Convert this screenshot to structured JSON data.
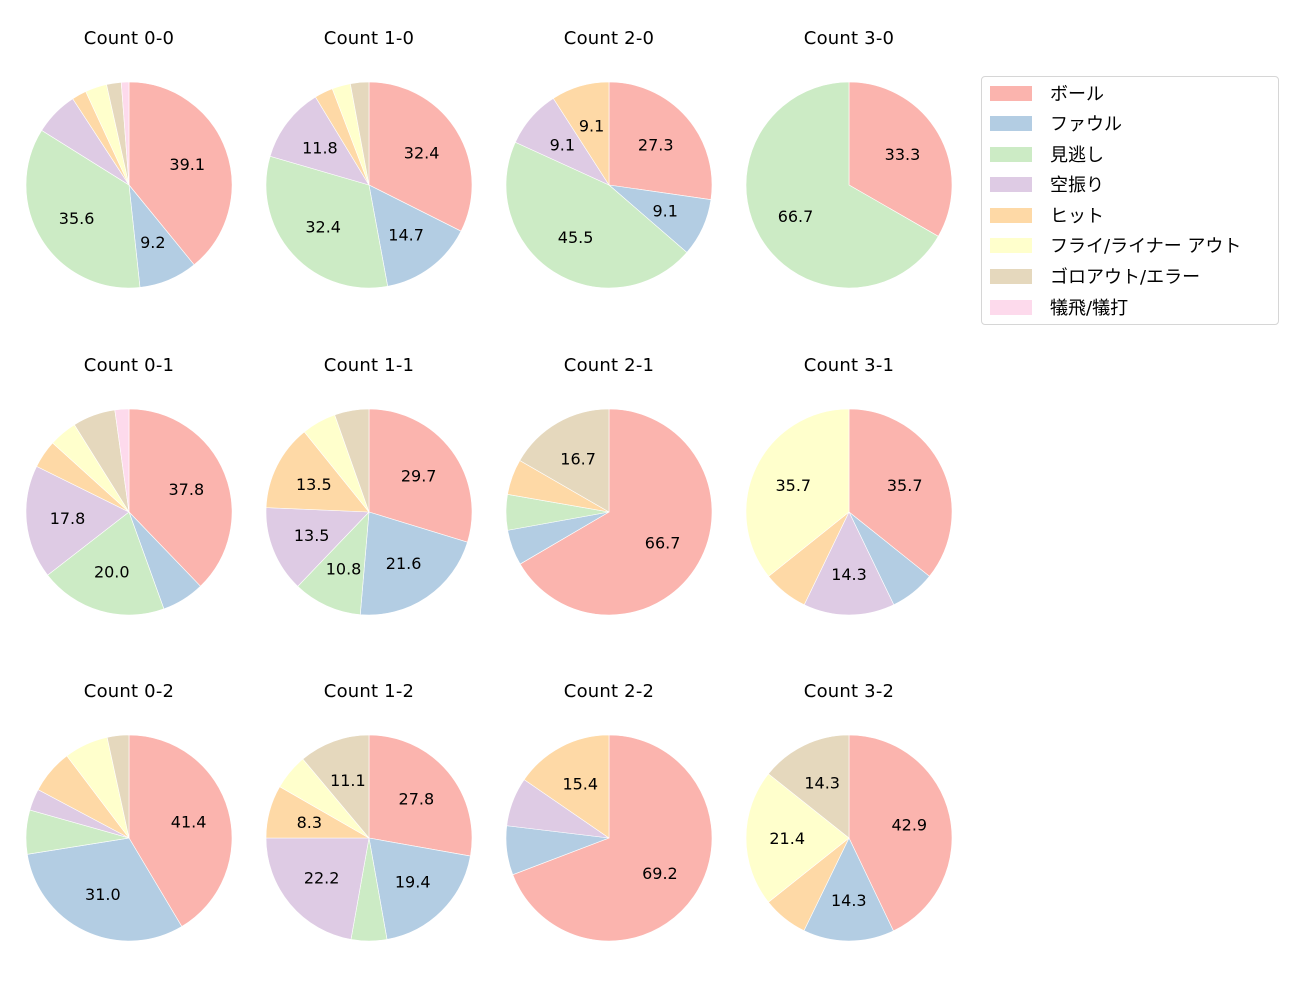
{
  "legend": {
    "items": [
      {
        "label": "ボール",
        "color": "#fbb4ae"
      },
      {
        "label": "ファウル",
        "color": "#b3cde3"
      },
      {
        "label": "見逃し",
        "color": "#ccebc5"
      },
      {
        "label": "空振り",
        "color": "#decbe4"
      },
      {
        "label": "ヒット",
        "color": "#fed9a6"
      },
      {
        "label": "フライ/ライナー アウト",
        "color": "#ffffcc"
      },
      {
        "label": "ゴロアウト/エラー",
        "color": "#e5d8bd"
      },
      {
        "label": "犠飛/犠打",
        "color": "#fddaec"
      }
    ]
  },
  "chart_data": [
    {
      "type": "pie",
      "title": "Count 0-0",
      "categories": [
        "ボール",
        "ファウル",
        "見逃し",
        "空振り",
        "ヒット",
        "フライ/ライナー アウト",
        "ゴロアウト/エラー",
        "犠飛/犠打"
      ],
      "values": [
        39.1,
        9.2,
        35.6,
        6.9,
        2.3,
        3.4,
        2.3,
        1.2
      ],
      "labels": [
        "39.1",
        "9.2",
        "35.6",
        "",
        "",
        "",
        "",
        ""
      ]
    },
    {
      "type": "pie",
      "title": "Count 1-0",
      "categories": [
        "ボール",
        "ファウル",
        "見逃し",
        "空振り",
        "ヒット",
        "フライ/ライナー アウト",
        "ゴロアウト/エラー",
        "犠飛/犠打"
      ],
      "values": [
        32.4,
        14.7,
        32.4,
        11.8,
        2.9,
        2.9,
        2.9,
        0
      ],
      "labels": [
        "32.4",
        "14.7",
        "32.4",
        "11.8",
        "",
        "",
        "",
        ""
      ]
    },
    {
      "type": "pie",
      "title": "Count 2-0",
      "categories": [
        "ボール",
        "ファウル",
        "見逃し",
        "空振り",
        "ヒット",
        "フライ/ライナー アウト",
        "ゴロアウト/エラー",
        "犠飛/犠打"
      ],
      "values": [
        27.3,
        9.1,
        45.5,
        9.1,
        9.1,
        0,
        0,
        0
      ],
      "labels": [
        "27.3",
        "9.1",
        "45.5",
        "9.1",
        "9.1",
        "",
        "",
        ""
      ]
    },
    {
      "type": "pie",
      "title": "Count 3-0",
      "categories": [
        "ボール",
        "ファウル",
        "見逃し",
        "空振り",
        "ヒット",
        "フライ/ライナー アウト",
        "ゴロアウト/エラー",
        "犠飛/犠打"
      ],
      "values": [
        33.3,
        0,
        66.7,
        0,
        0,
        0,
        0,
        0
      ],
      "labels": [
        "33.3",
        "",
        "66.7",
        "",
        "",
        "",
        "",
        ""
      ]
    },
    {
      "type": "pie",
      "title": "Count 0-1",
      "categories": [
        "ボール",
        "ファウル",
        "見逃し",
        "空振り",
        "ヒット",
        "フライ/ライナー アウト",
        "ゴロアウト/エラー",
        "犠飛/犠打"
      ],
      "values": [
        37.8,
        6.7,
        20.0,
        17.8,
        4.4,
        4.4,
        6.7,
        2.2
      ],
      "labels": [
        "37.8",
        "",
        "20.0",
        "17.8",
        "",
        "",
        "",
        ""
      ]
    },
    {
      "type": "pie",
      "title": "Count 1-1",
      "categories": [
        "ボール",
        "ファウル",
        "見逃し",
        "空振り",
        "ヒット",
        "フライ/ライナー アウト",
        "ゴロアウト/エラー",
        "犠飛/犠打"
      ],
      "values": [
        29.7,
        21.6,
        10.8,
        13.5,
        13.5,
        5.4,
        5.4,
        0
      ],
      "labels": [
        "29.7",
        "21.6",
        "10.8",
        "13.5",
        "13.5",
        "",
        "",
        ""
      ]
    },
    {
      "type": "pie",
      "title": "Count 2-1",
      "categories": [
        "ボール",
        "ファウル",
        "見逃し",
        "空振り",
        "ヒット",
        "フライ/ライナー アウト",
        "ゴロアウト/エラー",
        "犠飛/犠打"
      ],
      "values": [
        66.7,
        5.6,
        5.6,
        0,
        5.6,
        0,
        16.7,
        0
      ],
      "labels": [
        "66.7",
        "",
        "",
        "",
        "",
        "",
        "16.7",
        ""
      ]
    },
    {
      "type": "pie",
      "title": "Count 3-1",
      "categories": [
        "ボール",
        "ファウル",
        "見逃し",
        "空振り",
        "ヒット",
        "フライ/ライナー アウト",
        "ゴロアウト/エラー",
        "犠飛/犠打"
      ],
      "values": [
        35.7,
        7.1,
        0,
        14.3,
        7.1,
        35.7,
        0,
        0
      ],
      "labels": [
        "35.7",
        "",
        "",
        "14.3",
        "",
        "35.7",
        "",
        ""
      ]
    },
    {
      "type": "pie",
      "title": "Count 0-2",
      "categories": [
        "ボール",
        "ファウル",
        "見逃し",
        "空振り",
        "ヒット",
        "フライ/ライナー アウト",
        "ゴロアウト/エラー",
        "犠飛/犠打"
      ],
      "values": [
        41.4,
        31.0,
        6.9,
        3.4,
        6.9,
        6.9,
        3.4,
        0
      ],
      "labels": [
        "41.4",
        "31.0",
        "",
        "",
        "",
        "",
        "",
        ""
      ]
    },
    {
      "type": "pie",
      "title": "Count 1-2",
      "categories": [
        "ボール",
        "ファウル",
        "見逃し",
        "空振り",
        "ヒット",
        "フライ/ライナー アウト",
        "ゴロアウト/エラー",
        "犠飛/犠打"
      ],
      "values": [
        27.8,
        19.4,
        5.6,
        22.2,
        8.3,
        5.6,
        11.1,
        0
      ],
      "labels": [
        "27.8",
        "19.4",
        "",
        "22.2",
        "8.3",
        "",
        "11.1",
        ""
      ]
    },
    {
      "type": "pie",
      "title": "Count 2-2",
      "categories": [
        "ボール",
        "ファウル",
        "見逃し",
        "空振り",
        "ヒット",
        "フライ/ライナー アウト",
        "ゴロアウト/エラー",
        "犠飛/犠打"
      ],
      "values": [
        69.2,
        7.7,
        0,
        7.7,
        15.4,
        0,
        0,
        0
      ],
      "labels": [
        "69.2",
        "",
        "",
        "",
        "15.4",
        "",
        "",
        ""
      ]
    },
    {
      "type": "pie",
      "title": "Count 3-2",
      "categories": [
        "ボール",
        "ファウル",
        "見逃し",
        "空振り",
        "ヒット",
        "フライ/ライナー アウト",
        "ゴロアウト/エラー",
        "犠飛/犠打"
      ],
      "values": [
        42.9,
        14.3,
        0,
        0,
        7.1,
        21.4,
        14.3,
        0
      ],
      "labels": [
        "42.9",
        "14.3",
        "",
        "",
        "",
        "21.4",
        "14.3",
        ""
      ]
    }
  ],
  "layout": {
    "start_angle_deg": 90,
    "direction": "clockwise",
    "legend_position": "upper right"
  }
}
